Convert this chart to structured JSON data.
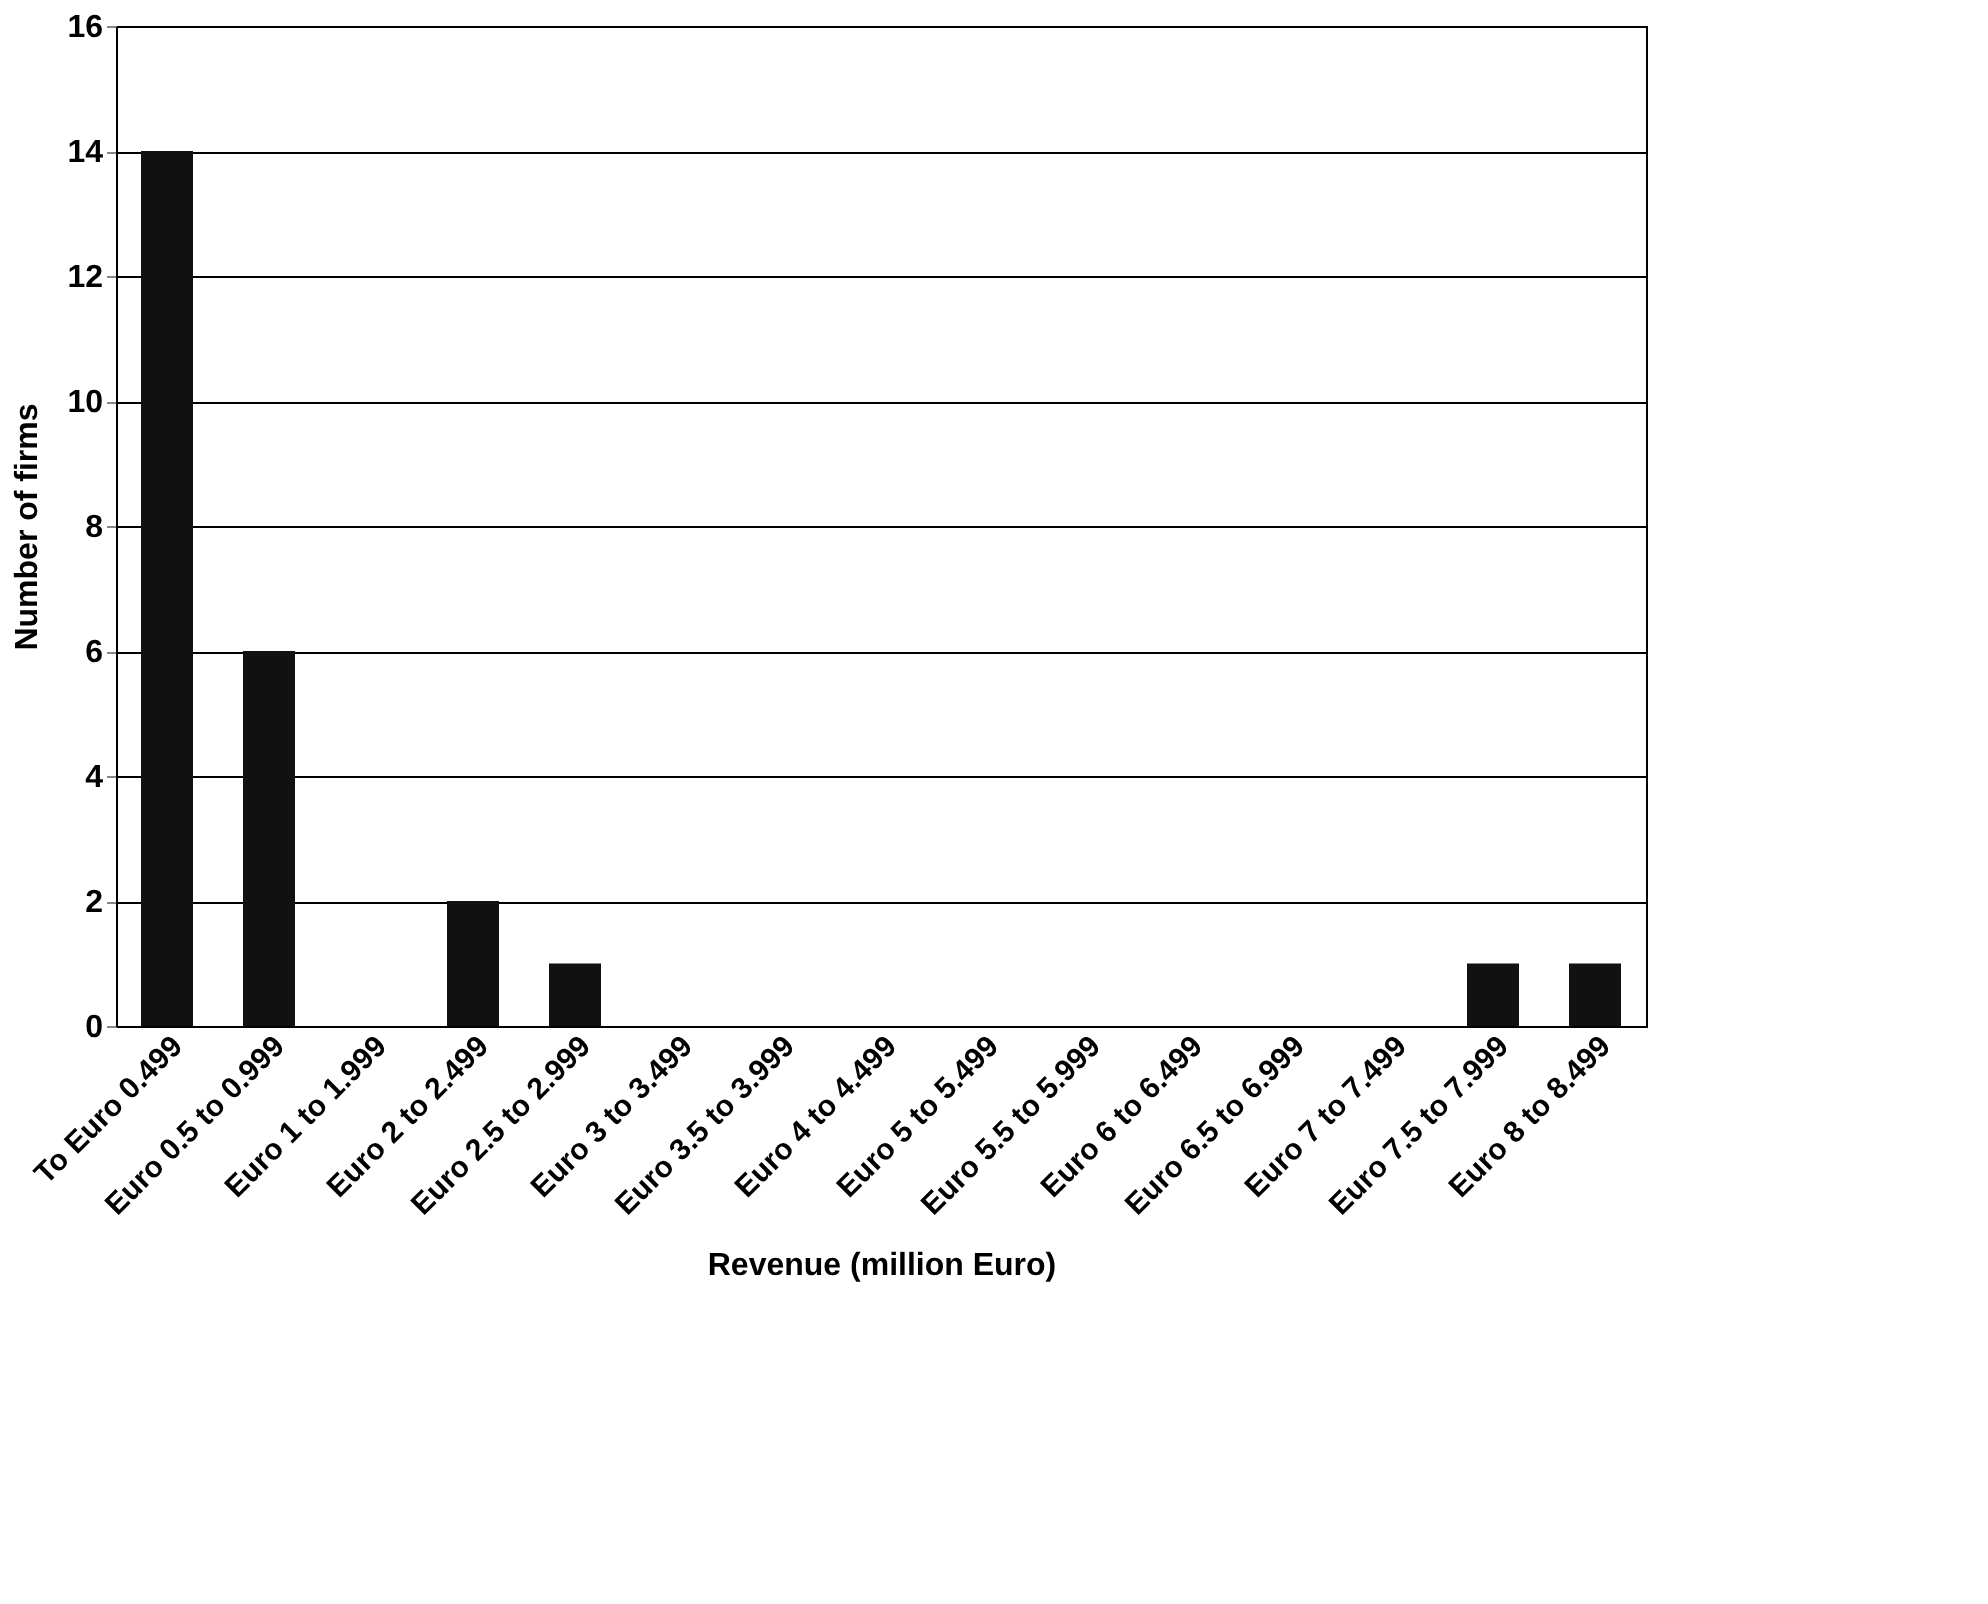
{
  "chart_data": {
    "type": "bar",
    "xlabel": "Revenue (million Euro)",
    "ylabel": "Number of firms",
    "categories": [
      "To Euro 0.499",
      "Euro 0.5 to 0.999",
      "Euro 1 to 1.999",
      "Euro 2 to 2.499",
      "Euro 2.5 to 2.999",
      "Euro 3 to 3.499",
      "Euro 3.5 to 3.999",
      "Euro 4 to 4.499",
      "Euro 5 to 5.499",
      "Euro 5.5 to 5.999",
      "Euro 6 to 6.499",
      "Euro 6.5 to 6.999",
      "Euro 7 to 7.499",
      "Euro 7.5 to 7.999",
      "Euro 8 to 8.499"
    ],
    "values": [
      14,
      6,
      0,
      2,
      1,
      0,
      0,
      0,
      0,
      0,
      0,
      0,
      0,
      1,
      1
    ],
    "color": "#111111",
    "ylim": [
      0,
      16
    ],
    "yticks": [
      0,
      2,
      4,
      6,
      8,
      10,
      12,
      14,
      16
    ],
    "grid": "y"
  }
}
